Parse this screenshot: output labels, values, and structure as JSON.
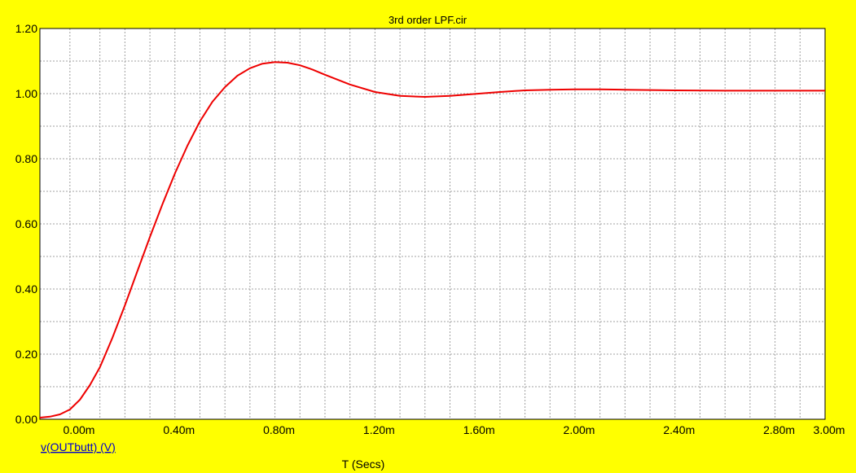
{
  "chart_data": {
    "type": "line",
    "title": "3rd order LPF.cir",
    "xlabel": "T (Secs)",
    "ylabel": "",
    "xlim": [
      -0.00014,
      0.003
    ],
    "ylim": [
      0,
      1.2
    ],
    "grid": true,
    "x_ticks": [
      {
        "value": 0.0,
        "label": "0.00m"
      },
      {
        "value": 0.0004,
        "label": "0.40m"
      },
      {
        "value": 0.0008,
        "label": "0.80m"
      },
      {
        "value": 0.0012,
        "label": "1.20m"
      },
      {
        "value": 0.0016,
        "label": "1.60m"
      },
      {
        "value": 0.002,
        "label": "2.00m"
      },
      {
        "value": 0.0024,
        "label": "2.40m"
      },
      {
        "value": 0.0028,
        "label": "2.80m"
      },
      {
        "value": 0.003,
        "label": "3.00m"
      }
    ],
    "x_grid": [
      -0.00014,
      -2e-05,
      0.0001,
      0.0002,
      0.0003,
      0.0004,
      0.0005,
      0.0006,
      0.0007,
      0.0008,
      0.0009,
      0.001,
      0.0011,
      0.0012,
      0.0013,
      0.0014,
      0.0015,
      0.0016,
      0.0017,
      0.0018,
      0.0019,
      0.002,
      0.0021,
      0.0022,
      0.0023,
      0.0024,
      0.0025,
      0.0026,
      0.0027,
      0.0028,
      0.0029,
      0.003
    ],
    "y_ticks": [
      {
        "value": 0.0,
        "label": "0.00"
      },
      {
        "value": 0.2,
        "label": "0.20"
      },
      {
        "value": 0.4,
        "label": "0.40"
      },
      {
        "value": 0.6,
        "label": "0.60"
      },
      {
        "value": 0.8,
        "label": "0.80"
      },
      {
        "value": 1.0,
        "label": "1.00"
      },
      {
        "value": 1.2,
        "label": "1.20"
      }
    ],
    "series": [
      {
        "name": "v(OUTbutt) (V)",
        "color": "#ee0000",
        "x": [
          -0.00014,
          -0.0001,
          -6e-05,
          -2e-05,
          2e-05,
          6e-05,
          0.0001,
          0.00015,
          0.0002,
          0.00025,
          0.0003,
          0.00035,
          0.0004,
          0.00045,
          0.0005,
          0.00055,
          0.0006,
          0.00065,
          0.0007,
          0.00075,
          0.0008,
          0.00085,
          0.0009,
          0.00095,
          0.001,
          0.0011,
          0.0012,
          0.0013,
          0.0014,
          0.0015,
          0.0016,
          0.0017,
          0.0018,
          0.0019,
          0.002,
          0.0021,
          0.0022,
          0.0024,
          0.0026,
          0.0028,
          0.003
        ],
        "y": [
          0.005,
          0.008,
          0.015,
          0.03,
          0.06,
          0.105,
          0.16,
          0.25,
          0.35,
          0.455,
          0.56,
          0.66,
          0.755,
          0.84,
          0.915,
          0.975,
          1.02,
          1.055,
          1.078,
          1.092,
          1.097,
          1.095,
          1.087,
          1.074,
          1.058,
          1.028,
          1.005,
          0.993,
          0.99,
          0.993,
          0.999,
          1.005,
          1.01,
          1.012,
          1.013,
          1.013,
          1.012,
          1.01,
          1.009,
          1.009,
          1.009
        ]
      }
    ]
  }
}
